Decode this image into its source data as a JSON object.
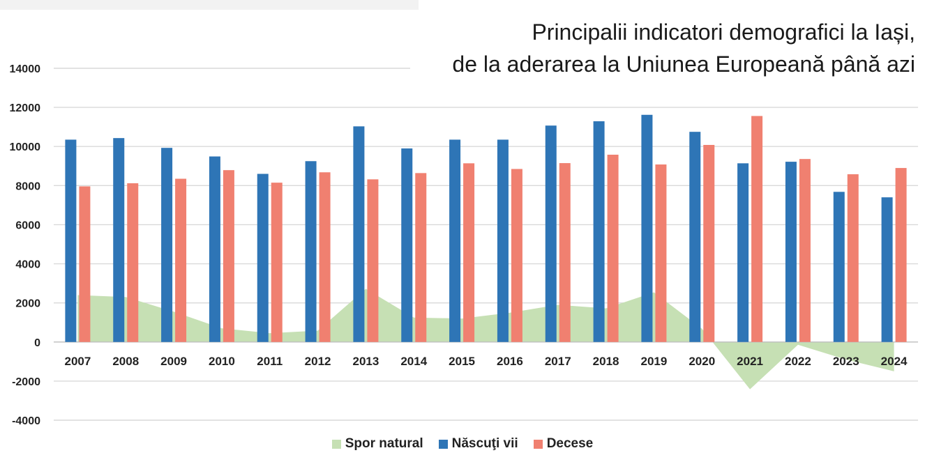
{
  "chart_data": {
    "type": "bar",
    "title_lines": [
      "Principalii indicatori demografici la Iași,",
      "de la aderarea la Uniunea Europeană până azi"
    ],
    "categories": [
      "2007",
      "2008",
      "2009",
      "2010",
      "2011",
      "2012",
      "2013",
      "2014",
      "2015",
      "2016",
      "2017",
      "2018",
      "2019",
      "2020",
      "2021",
      "2022",
      "2023",
      "2024"
    ],
    "ylim": [
      -4000,
      14000
    ],
    "yticks": [
      14000,
      12000,
      10000,
      8000,
      6000,
      4000,
      2000,
      0,
      -2000,
      -4000
    ],
    "grid": true,
    "legend_position": "bottom",
    "series": [
      {
        "name": "Spor natural",
        "type": "area",
        "color": "#c6e0b4",
        "values": [
          2400,
          2300,
          1550,
          700,
          450,
          580,
          2720,
          1250,
          1200,
          1500,
          1900,
          1720,
          2540,
          680,
          -2420,
          -140,
          -900,
          -1500
        ]
      },
      {
        "name": "Născuţi vii",
        "type": "bar",
        "color": "#2e75b6",
        "values": [
          10350,
          10430,
          9930,
          9490,
          8600,
          9250,
          11030,
          9900,
          10350,
          10350,
          11070,
          11290,
          11620,
          10750,
          9140,
          9220,
          7680,
          7400
        ]
      },
      {
        "name": "Decese",
        "type": "bar",
        "color": "#f08070",
        "values": [
          7960,
          8120,
          8350,
          8790,
          8150,
          8680,
          8320,
          8640,
          9140,
          8850,
          9150,
          9580,
          9080,
          10080,
          11560,
          9360,
          8580,
          8900
        ]
      }
    ]
  }
}
